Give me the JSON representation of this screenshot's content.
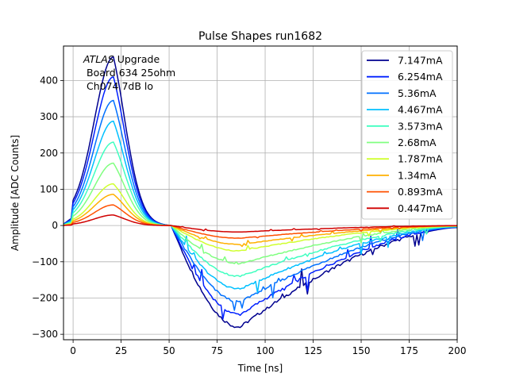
{
  "chart_data": {
    "type": "line",
    "title": "Pulse Shapes run1682",
    "xlabel": "Time [ns]",
    "ylabel": "Amplitude [ADC Counts]",
    "xlim": [
      -5,
      200
    ],
    "ylim": [
      -315,
      495
    ],
    "xticks": [
      0,
      25,
      50,
      75,
      100,
      125,
      150,
      175,
      200
    ],
    "yticks": [
      -300,
      -200,
      -100,
      0,
      100,
      200,
      300,
      400
    ],
    "grid": true,
    "legend_position": "upper right",
    "annotation": {
      "line1_italic": "ATLAS",
      "line1_rest": " Upgrade",
      "line2": "Board 634 25ohm",
      "line3": "Ch074 7dB lo"
    },
    "pulse_template": {
      "peak_time_ns": 21,
      "zero_cross_ns": 51,
      "min_time_ns": 87,
      "tail_end_ns": 200,
      "undershoot_ratio": 0.6
    },
    "series": [
      {
        "name": "7.147mA",
        "color": "#00008f",
        "peak": 465,
        "min": -280
      },
      {
        "name": "6.254mA",
        "color": "#0020ff",
        "peak": 410,
        "min": -245
      },
      {
        "name": "5.36mA",
        "color": "#0070ff",
        "peak": 345,
        "min": -210
      },
      {
        "name": "4.467mA",
        "color": "#00c0ff",
        "peak": 288,
        "min": -175
      },
      {
        "name": "3.573mA",
        "color": "#40ffc0",
        "peak": 230,
        "min": -140
      },
      {
        "name": "2.68mA",
        "color": "#80ff80",
        "peak": 172,
        "min": -105
      },
      {
        "name": "1.787mA",
        "color": "#d0ff30",
        "peak": 115,
        "min": -70
      },
      {
        "name": "1.34mA",
        "color": "#ffb000",
        "peak": 86,
        "min": -52
      },
      {
        "name": "0.893mA",
        "color": "#ff5000",
        "peak": 57,
        "min": -35
      },
      {
        "name": "0.447mA",
        "color": "#d00000",
        "peak": 29,
        "min": -18
      }
    ]
  }
}
